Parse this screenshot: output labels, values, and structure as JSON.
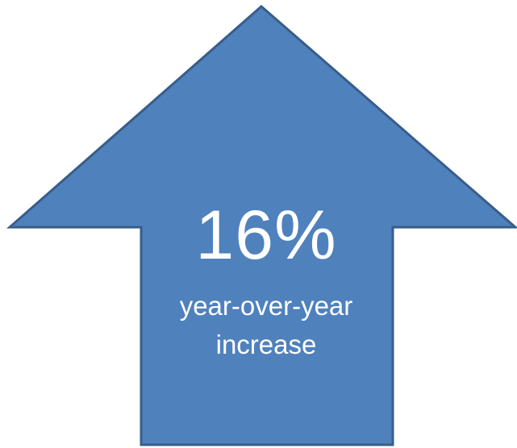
{
  "arrow": {
    "fill": "#4f81bd",
    "stroke": "#385d8a",
    "value": "16%",
    "caption": "year-over-year increase"
  }
}
